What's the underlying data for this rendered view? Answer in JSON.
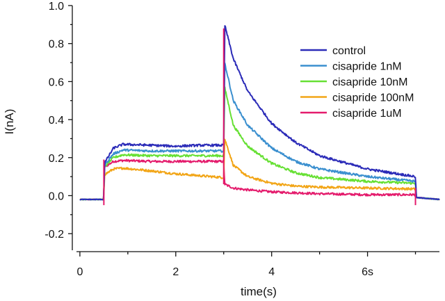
{
  "chart_data": {
    "type": "line",
    "title": "",
    "xlabel": "time(s)",
    "ylabel": "I(nA)",
    "xlim": [
      -0.1,
      7.5
    ],
    "ylim": [
      -0.28,
      1.0
    ],
    "x_ticks": [
      0,
      2,
      4,
      6
    ],
    "x_tick_labels": [
      "0",
      "2",
      "4",
      "6s"
    ],
    "y_ticks": [
      -0.2,
      0.0,
      0.2,
      0.4,
      0.6,
      0.8,
      1.0
    ],
    "y_tick_labels": [
      "-0.2",
      "0.0",
      "0.2",
      "0.4",
      "0.6",
      "0.8",
      "1.0"
    ],
    "grid": false,
    "legend_position": "top-right",
    "x": [
      0.0,
      0.5,
      0.51,
      0.7,
      0.9,
      1.5,
      2.0,
      2.5,
      3.0,
      3.02,
      3.2,
      3.5,
      4.0,
      4.5,
      5.0,
      6.0,
      7.0,
      7.02,
      7.5
    ],
    "series": [
      {
        "name": "control",
        "color": "#2b2bb8",
        "values": [
          -0.02,
          -0.02,
          0.17,
          0.25,
          0.27,
          0.265,
          0.26,
          0.265,
          0.265,
          0.9,
          0.72,
          0.55,
          0.38,
          0.28,
          0.21,
          0.14,
          0.1,
          -0.01,
          -0.02
        ]
      },
      {
        "name": "cisapride 1nM",
        "color": "#3a8fcf",
        "values": [
          -0.02,
          -0.02,
          0.16,
          0.22,
          0.24,
          0.235,
          0.235,
          0.235,
          0.235,
          0.7,
          0.5,
          0.37,
          0.25,
          0.18,
          0.14,
          0.1,
          0.075,
          -0.01,
          -0.02
        ]
      },
      {
        "name": "cisapride 10nM",
        "color": "#66e033",
        "values": [
          -0.02,
          -0.02,
          0.15,
          0.2,
          0.215,
          0.21,
          0.21,
          0.21,
          0.21,
          0.57,
          0.37,
          0.26,
          0.17,
          0.12,
          0.095,
          0.075,
          0.065,
          -0.01,
          -0.02
        ]
      },
      {
        "name": "cisapride 100nM",
        "color": "#f2a516",
        "values": [
          -0.02,
          -0.02,
          0.11,
          0.14,
          0.145,
          0.13,
          0.115,
          0.105,
          0.095,
          0.3,
          0.16,
          0.1,
          0.065,
          0.05,
          0.045,
          0.04,
          0.035,
          -0.01,
          -0.02
        ]
      },
      {
        "name": "cisapride 1uM",
        "color": "#e41b6c",
        "values": [
          -0.02,
          -0.02,
          0.15,
          0.18,
          0.185,
          0.18,
          0.18,
          0.18,
          0.18,
          0.06,
          0.04,
          0.03,
          0.02,
          0.015,
          0.01,
          0.005,
          0.005,
          -0.01,
          -0.02
        ]
      }
    ]
  }
}
